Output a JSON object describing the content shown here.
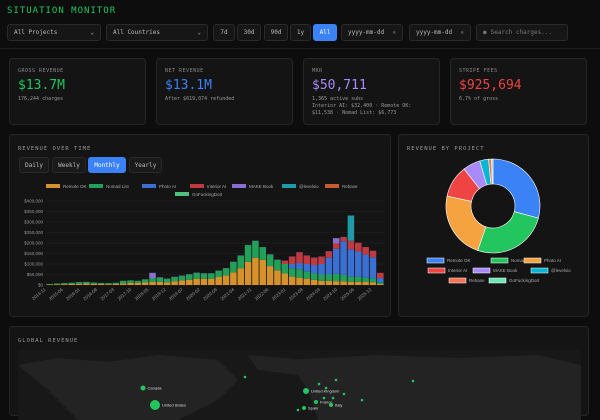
{
  "header": {
    "title": "SITUATION MONITOR"
  },
  "filters": {
    "project": "All Projects",
    "country": "All Countries",
    "ranges": [
      "7d",
      "30d",
      "90d",
      "1y",
      "All"
    ],
    "active_range": "All",
    "date_from_placeholder": "yyyy-mm-dd",
    "date_to_placeholder": "yyyy-mm-dd",
    "search_placeholder": "Search charges..."
  },
  "cards": [
    {
      "label": "GROSS REVENUE",
      "value": "$13.7M",
      "sub": "176,244 charges",
      "color": "#22c55e"
    },
    {
      "label": "NET REVENUE",
      "value": "$13.1M",
      "sub": "After $619,074 refunded",
      "color": "#3b82f6"
    },
    {
      "label": "MRR",
      "value": "$50,711",
      "sub": "1,365 active subs",
      "sub2": "Interior AI: $32,400 · Remote OK: $11,538 · Nomad List: $6,773",
      "color": "#a78bfa"
    },
    {
      "label": "STRIPE FEES",
      "value": "$925,694",
      "sub": "6.7% of gross",
      "color": "#ef4444"
    }
  ],
  "revenue_panel": {
    "title": "REVENUE OVER TIME",
    "granularity": [
      "Daily",
      "Weekly",
      "Monthly",
      "Yearly"
    ],
    "active": "Monthly"
  },
  "project_panel": {
    "title": "REVENUE BY PROJECT"
  },
  "global_panel": {
    "title": "GLOBAL REVENUE",
    "countries": [
      "Canada",
      "United States",
      "United Kingdom",
      "France",
      "Italy",
      "Spain"
    ]
  },
  "chart_data": [
    {
      "type": "bar",
      "stacked": true,
      "title": "",
      "xlabel": "",
      "ylabel": "",
      "ylim": [
        0,
        400000
      ],
      "yticks": [
        "$0",
        "$50,000",
        "$100,000",
        "$150,000",
        "$200,000",
        "$250,000",
        "$300,000",
        "$350,000",
        "$400,000"
      ],
      "xticks": [
        "2014-11",
        "2015-06",
        "2016-01",
        "2016-08",
        "2017-03",
        "2017-10",
        "2018-05",
        "2018-12",
        "2019-07",
        "2020-02",
        "2020-09",
        "2021-04",
        "2021-11",
        "2022-06",
        "2023-01",
        "2023-08",
        "2024-03",
        "2024-10",
        "2025-05",
        "2025-12"
      ],
      "legend": "top",
      "grid": true,
      "categories": [
        "2014-11",
        "2015-02",
        "2015-05",
        "2015-08",
        "2015-11",
        "2016-02",
        "2016-05",
        "2016-08",
        "2016-11",
        "2017-02",
        "2017-05",
        "2017-08",
        "2017-11",
        "2018-02",
        "2018-05",
        "2018-08",
        "2018-11",
        "2019-02",
        "2019-05",
        "2019-08",
        "2019-11",
        "2020-02",
        "2020-05",
        "2020-08",
        "2020-11",
        "2021-02",
        "2021-05",
        "2021-08",
        "2021-11",
        "2022-02",
        "2022-05",
        "2022-08",
        "2022-11",
        "2023-02",
        "2023-05",
        "2023-08",
        "2023-11",
        "2024-02",
        "2024-05",
        "2024-08",
        "2024-11",
        "2025-02",
        "2025-05",
        "2025-08",
        "2025-11",
        "2026-02"
      ],
      "series": [
        {
          "name": "Remote OK",
          "color": "#d4912c",
          "values": [
            2000,
            3000,
            4000,
            5000,
            6000,
            7000,
            6000,
            5000,
            4000,
            5000,
            8000,
            10000,
            10000,
            12000,
            15000,
            15000,
            12000,
            18000,
            22000,
            25000,
            30000,
            30000,
            30000,
            38000,
            45000,
            60000,
            80000,
            110000,
            130000,
            120000,
            90000,
            70000,
            55000,
            40000,
            35000,
            30000,
            25000,
            20000,
            20000,
            18000,
            18000,
            15000,
            15000,
            15000,
            12000,
            5000
          ]
        },
        {
          "name": "Nomad List",
          "color": "#22a05a",
          "values": [
            3000,
            4000,
            5000,
            6000,
            8000,
            8000,
            6000,
            5000,
            5000,
            6000,
            12000,
            12000,
            10000,
            15000,
            18000,
            20000,
            18000,
            20000,
            22000,
            25000,
            28000,
            25000,
            25000,
            30000,
            35000,
            50000,
            60000,
            80000,
            80000,
            60000,
            55000,
            50000,
            45000,
            40000,
            40000,
            35000,
            30000,
            30000,
            30000,
            35000,
            30000,
            25000,
            25000,
            20000,
            20000,
            8000
          ]
        },
        {
          "name": "Photo AI",
          "color": "#3b6fd1",
          "values": [
            0,
            0,
            0,
            0,
            0,
            0,
            0,
            0,
            0,
            0,
            0,
            0,
            0,
            0,
            0,
            0,
            0,
            0,
            0,
            0,
            0,
            0,
            0,
            0,
            0,
            0,
            0,
            0,
            0,
            0,
            0,
            0,
            0,
            20000,
            30000,
            35000,
            40000,
            50000,
            80000,
            120000,
            160000,
            130000,
            120000,
            110000,
            100000,
            20000
          ]
        },
        {
          "name": "Interior AI",
          "color": "#c0393f",
          "values": [
            0,
            0,
            0,
            0,
            0,
            0,
            0,
            0,
            0,
            0,
            0,
            0,
            0,
            0,
            0,
            0,
            0,
            0,
            0,
            0,
            0,
            0,
            0,
            0,
            0,
            0,
            0,
            0,
            0,
            0,
            0,
            0,
            15000,
            35000,
            50000,
            40000,
            35000,
            35000,
            30000,
            25000,
            20000,
            40000,
            40000,
            35000,
            30000,
            25000
          ]
        },
        {
          "name": "MAKE Book",
          "color": "#8b6fd0",
          "values": [
            0,
            0,
            0,
            0,
            0,
            0,
            0,
            0,
            0,
            0,
            0,
            0,
            0,
            0,
            25000,
            2000,
            1000,
            1000,
            1000,
            1000,
            1000,
            1000,
            1000,
            1000,
            1000,
            1000,
            1000,
            1000,
            1000,
            1000,
            1000,
            1000,
            1000,
            1000,
            1000,
            1000,
            1000,
            1000,
            1000,
            25000,
            1000,
            1000,
            1000,
            1000,
            1000,
            0
          ]
        },
        {
          "name": "@levelsio",
          "color": "#1f9aa8",
          "values": [
            0,
            0,
            0,
            0,
            0,
            0,
            0,
            0,
            0,
            0,
            0,
            0,
            0,
            0,
            0,
            0,
            0,
            0,
            0,
            0,
            0,
            0,
            0,
            0,
            0,
            0,
            0,
            0,
            0,
            0,
            0,
            0,
            0,
            0,
            0,
            0,
            0,
            0,
            0,
            0,
            0,
            120000,
            0,
            0,
            0,
            0
          ]
        },
        {
          "name": "Rebase",
          "color": "#c85a30",
          "values": [
            0,
            0,
            0,
            0,
            0,
            0,
            0,
            0,
            0,
            0,
            0,
            0,
            0,
            0,
            0,
            0,
            0,
            0,
            0,
            0,
            0,
            0,
            0,
            0,
            0,
            0,
            0,
            0,
            0,
            0,
            0,
            0,
            0,
            0,
            0,
            0,
            0,
            0,
            0,
            0,
            0,
            0,
            0,
            0,
            0,
            0
          ]
        },
        {
          "name": "GoFuckingDoIt",
          "color": "#4fbf80",
          "values": [
            0,
            0,
            0,
            0,
            0,
            0,
            0,
            0,
            0,
            0,
            0,
            0,
            0,
            0,
            0,
            0,
            0,
            0,
            0,
            0,
            0,
            0,
            0,
            0,
            0,
            0,
            0,
            0,
            0,
            0,
            0,
            0,
            0,
            0,
            0,
            0,
            0,
            0,
            0,
            0,
            0,
            0,
            0,
            0,
            0,
            0
          ]
        }
      ]
    },
    {
      "type": "pie",
      "donut": true,
      "title": "",
      "legend": "bottom",
      "categories": [
        "Remote OK",
        "Nomad List",
        "Photo AI",
        "Interior AI",
        "MAKE Book",
        "@levelsio",
        "Rebase",
        "GoFuckingDoIt"
      ],
      "values": [
        29,
        26,
        23,
        11,
        6,
        3,
        1,
        0.5
      ],
      "colors": [
        "#3b82f6",
        "#22c55e",
        "#f5a340",
        "#ef4444",
        "#a78bfa",
        "#06b6d4",
        "#f97352",
        "#6ee7b7"
      ]
    }
  ]
}
